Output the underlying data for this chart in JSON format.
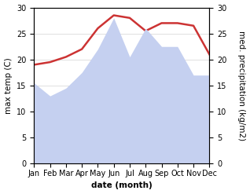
{
  "months": [
    "Jan",
    "Feb",
    "Mar",
    "Apr",
    "May",
    "Jun",
    "Jul",
    "Aug",
    "Sep",
    "Oct",
    "Nov",
    "Dec"
  ],
  "max_temp": [
    19.0,
    19.5,
    20.5,
    22.0,
    26.0,
    28.5,
    28.0,
    25.5,
    27.0,
    27.0,
    26.5,
    21.0
  ],
  "precipitation": [
    15.5,
    13.0,
    14.5,
    17.5,
    22.0,
    28.0,
    20.5,
    26.0,
    22.5,
    22.5,
    17.0,
    17.0
  ],
  "temp_color": "#cc3333",
  "precip_fill_color": "#c5d0f0",
  "background_color": "#ffffff",
  "ylabel_left": "max temp (C)",
  "ylabel_right": "med. precipitation (kg/m2)",
  "xlabel": "date (month)",
  "ylim_left": [
    0,
    30
  ],
  "ylim_right": [
    0,
    30
  ],
  "label_fontsize": 7.5,
  "tick_fontsize": 7.0
}
